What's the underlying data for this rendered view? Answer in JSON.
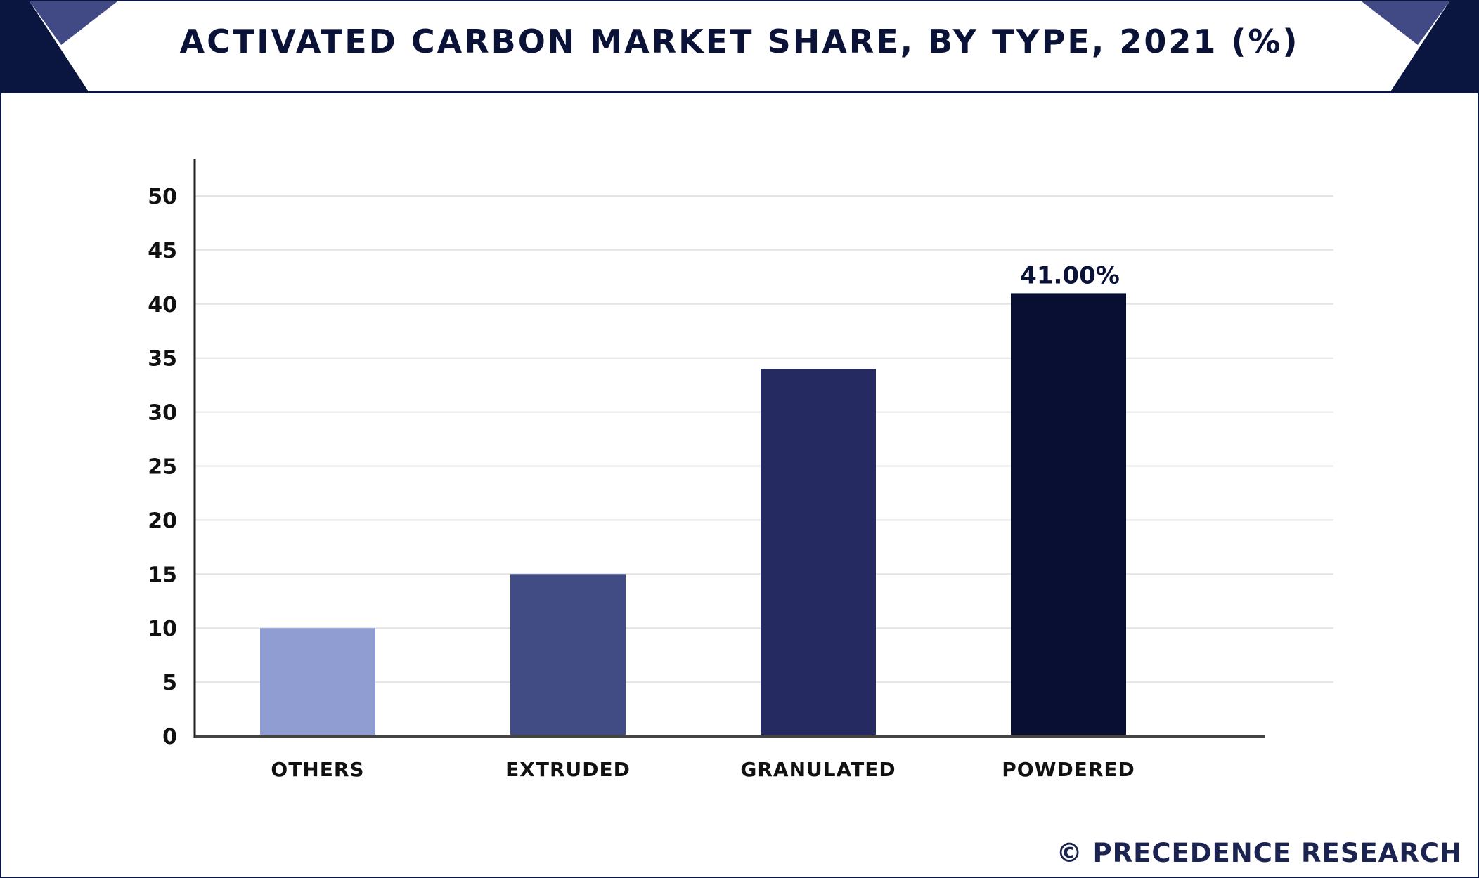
{
  "chart_data": {
    "type": "bar",
    "title": "ACTIVATED CARBON MARKET SHARE, BY TYPE, 2021 (%)",
    "categories": [
      "OTHERS",
      "EXTRUDED",
      "GRANULATED",
      "POWDERED"
    ],
    "values": [
      10.0,
      15.0,
      34.0,
      41.0
    ],
    "colors": [
      "#8f9dd2",
      "#414b84",
      "#252a61",
      "#080f33"
    ],
    "data_labels": [
      "",
      "",
      "",
      "41.00%"
    ],
    "yticks": [
      "0",
      "5",
      "10",
      "15",
      "20",
      "25",
      "30",
      "35",
      "40",
      "45",
      "50"
    ],
    "ylim": [
      0,
      50
    ],
    "xlabel": "",
    "ylabel": "",
    "grid": true
  },
  "brand": "© PRECEDENCE RESEARCH"
}
